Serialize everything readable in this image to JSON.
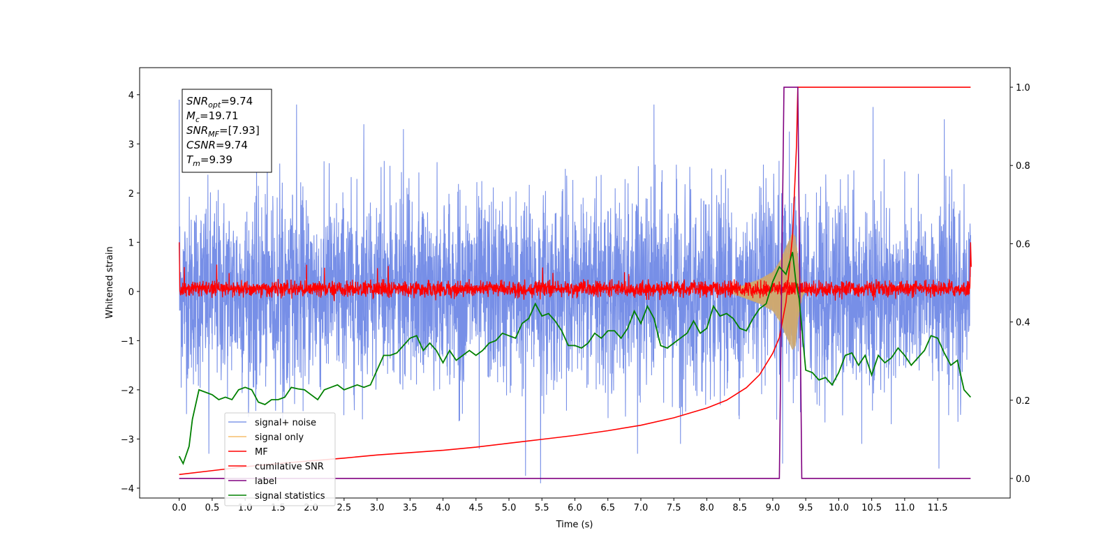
{
  "chart_data": {
    "type": "line",
    "xlabel": "Time (s)",
    "ylabel": "Whitened strain",
    "xlim": [
      -0.6,
      12.6
    ],
    "ylim_left": [
      -4.2,
      4.55
    ],
    "ylim_right": [
      -0.05,
      1.05
    ],
    "x_ticks": [
      0.0,
      0.5,
      1.0,
      1.5,
      2.0,
      2.5,
      3.0,
      3.5,
      4.0,
      4.5,
      5.0,
      5.5,
      6.0,
      6.5,
      7.0,
      7.5,
      8.0,
      8.5,
      9.0,
      9.5,
      10.0,
      10.5,
      11.0,
      11.5
    ],
    "x_tick_labels": [
      "0.0",
      "0.5",
      "1.0",
      "1.5",
      "2.0",
      "2.5",
      "3.0",
      "3.5",
      "4.0",
      "4.5",
      "5.0",
      "5.5",
      "6.0",
      "6.5",
      "7.0",
      "7.5",
      "8.0",
      "8.5",
      "9.0",
      "9.5",
      "10.0",
      "10.5",
      "11.0",
      "11.5"
    ],
    "y_ticks_left": [
      -4,
      -3,
      -2,
      -1,
      0,
      1,
      2,
      3,
      4
    ],
    "y_tick_labels_left": [
      "−4",
      "−3",
      "−2",
      "−1",
      "0",
      "1",
      "2",
      "3",
      "4"
    ],
    "y_ticks_right": [
      0.0,
      0.2,
      0.4,
      0.6,
      0.8,
      1.0
    ],
    "y_tick_labels_right": [
      "0.0",
      "0.2",
      "0.4",
      "0.6",
      "0.8",
      "1.0"
    ],
    "legend_position": "lower-left",
    "grid": false,
    "series": [
      {
        "name": "signal+ noise",
        "axis": "left",
        "color": "#6b86e5",
        "description": "whitened strain noise band, roughly -2.3 to 2.3 with spikes to about ±3.8",
        "t_start": 0.0,
        "t_end": 12.0,
        "band_typical": [
          -2.3,
          2.3
        ],
        "spikes": [
          {
            "x": 0.0,
            "y": 4.2
          },
          {
            "x": 0.0,
            "y": 3.9
          },
          {
            "x": 1.78,
            "y": 3.8
          },
          {
            "x": 7.2,
            "y": 3.8
          },
          {
            "x": 5.48,
            "y": -3.9
          },
          {
            "x": 5.25,
            "y": -3.75
          },
          {
            "x": 9.25,
            "y": 3.25
          },
          {
            "x": 10.52,
            "y": 3.75
          },
          {
            "x": 11.6,
            "y": 3.5
          },
          {
            "x": 11.52,
            "y": -3.6
          },
          {
            "x": 7.6,
            "y": -3.1
          },
          {
            "x": 4.55,
            "y": -3.2
          },
          {
            "x": 0.45,
            "y": -3.3
          },
          {
            "x": 9.15,
            "y": -3.5
          },
          {
            "x": 10.35,
            "y": -3.1
          },
          {
            "x": 6.95,
            "y": -3.3
          },
          {
            "x": 2.8,
            "y": 3.4
          },
          {
            "x": 3.4,
            "y": 3.3
          }
        ]
      },
      {
        "name": "signal only",
        "axis": "left",
        "color": "#f2a93b",
        "description": "chirp signal rising to peak near t≈9.3 s",
        "x": [
          8.4,
          8.6,
          8.8,
          9.0,
          9.1,
          9.2,
          9.3,
          9.35,
          9.4,
          9.45,
          9.5
        ],
        "envelope": [
          0.05,
          0.15,
          0.25,
          0.4,
          0.6,
          0.9,
          1.2,
          1.1,
          0.4,
          0.1,
          0.0
        ]
      },
      {
        "name": "MF",
        "axis": "left",
        "color": "#ff0000",
        "description": "matched-filter output, noise around 0 within about ±0.25 with end spikes to 1.0",
        "x": [
          0.0,
          0.01,
          12.0,
          12.01
        ],
        "y": [
          1.0,
          0.0,
          1.0,
          0.5
        ],
        "band": [
          -0.2,
          0.25
        ]
      },
      {
        "name": "cumilative SNR",
        "axis": "right",
        "color": "#ff0000",
        "x": [
          0.0,
          0.5,
          1.0,
          1.5,
          2.0,
          2.5,
          3.0,
          3.5,
          4.0,
          4.5,
          5.0,
          5.5,
          6.0,
          6.5,
          7.0,
          7.5,
          8.0,
          8.3,
          8.6,
          8.8,
          9.0,
          9.1,
          9.2,
          9.3,
          9.36,
          9.38,
          9.4,
          10.0,
          11.0,
          12.0
        ],
        "y": [
          0.01,
          0.02,
          0.03,
          0.038,
          0.045,
          0.052,
          0.06,
          0.066,
          0.072,
          0.08,
          0.09,
          0.1,
          0.11,
          0.122,
          0.136,
          0.155,
          0.18,
          0.2,
          0.232,
          0.265,
          0.32,
          0.36,
          0.45,
          0.62,
          0.85,
          1.0,
          1.0,
          1.0,
          1.0,
          1.0
        ]
      },
      {
        "name": "label",
        "axis": "right",
        "color": "#800080",
        "x": [
          0.0,
          9.1,
          9.17,
          9.38,
          9.44,
          12.0
        ],
        "y": [
          0.0,
          0.0,
          1.0,
          1.0,
          0.0,
          0.0
        ]
      },
      {
        "name": "signal statistics",
        "axis": "left",
        "color": "#008000",
        "x": [
          0.0,
          0.06,
          0.15,
          0.2,
          0.3,
          0.4,
          0.5,
          0.6,
          0.7,
          0.8,
          0.9,
          1.0,
          1.1,
          1.2,
          1.3,
          1.4,
          1.5,
          1.6,
          1.7,
          1.8,
          1.9,
          2.0,
          2.1,
          2.2,
          2.3,
          2.4,
          2.5,
          2.6,
          2.7,
          2.8,
          2.9,
          3.0,
          3.1,
          3.2,
          3.3,
          3.4,
          3.5,
          3.6,
          3.7,
          3.8,
          3.9,
          4.0,
          4.1,
          4.2,
          4.3,
          4.4,
          4.5,
          4.6,
          4.7,
          4.8,
          4.9,
          5.0,
          5.1,
          5.2,
          5.3,
          5.4,
          5.5,
          5.6,
          5.7,
          5.8,
          5.9,
          6.0,
          6.1,
          6.2,
          6.3,
          6.4,
          6.5,
          6.6,
          6.7,
          6.8,
          6.9,
          7.0,
          7.1,
          7.2,
          7.3,
          7.4,
          7.5,
          7.6,
          7.7,
          7.8,
          7.9,
          8.0,
          8.1,
          8.2,
          8.3,
          8.4,
          8.5,
          8.6,
          8.7,
          8.8,
          8.9,
          9.0,
          9.1,
          9.2,
          9.3,
          9.35,
          9.4,
          9.5,
          9.6,
          9.7,
          9.8,
          9.9,
          10.0,
          10.1,
          10.2,
          10.3,
          10.4,
          10.5,
          10.6,
          10.7,
          10.8,
          10.9,
          11.0,
          11.1,
          11.2,
          11.3,
          11.4,
          11.5,
          11.6,
          11.7,
          11.8,
          11.9,
          12.0
        ],
        "y": [
          -3.35,
          -3.5,
          -3.15,
          -2.6,
          -2.0,
          -2.05,
          -2.1,
          -2.2,
          -2.15,
          -2.2,
          -2.0,
          -1.95,
          -2.0,
          -2.25,
          -2.3,
          -2.2,
          -2.2,
          -2.15,
          -1.95,
          -1.98,
          -2.0,
          -2.1,
          -2.2,
          -2.0,
          -1.95,
          -1.9,
          -2.0,
          -1.95,
          -1.9,
          -1.95,
          -1.9,
          -1.6,
          -1.3,
          -1.3,
          -1.25,
          -1.1,
          -0.95,
          -0.9,
          -1.2,
          -1.05,
          -1.2,
          -1.45,
          -1.2,
          -1.4,
          -1.3,
          -1.2,
          -1.3,
          -1.2,
          -1.05,
          -1.0,
          -0.85,
          -0.9,
          -0.95,
          -0.65,
          -0.55,
          -0.25,
          -0.5,
          -0.45,
          -0.6,
          -0.8,
          -1.1,
          -1.1,
          -1.15,
          -1.05,
          -0.85,
          -0.95,
          -0.8,
          -0.8,
          -0.95,
          -0.75,
          -0.4,
          -0.65,
          -0.3,
          -0.55,
          -1.1,
          -1.15,
          -1.05,
          -0.95,
          -0.85,
          -0.6,
          -0.85,
          -0.75,
          -0.3,
          -0.5,
          -0.45,
          -0.55,
          -0.75,
          -0.8,
          -0.55,
          -0.35,
          -0.25,
          0.2,
          0.5,
          0.35,
          0.8,
          0.2,
          -0.15,
          -1.6,
          -1.65,
          -1.8,
          -1.75,
          -1.9,
          -1.65,
          -1.3,
          -1.25,
          -1.5,
          -1.3,
          -1.7,
          -1.3,
          -1.45,
          -1.35,
          -1.15,
          -1.3,
          -1.5,
          -1.35,
          -1.2,
          -0.9,
          -0.95,
          -1.25,
          -1.5,
          -1.4,
          -2.0,
          -2.15
        ]
      }
    ],
    "stats_box": [
      {
        "var": "SNR",
        "sub": "opt",
        "value": "=9.74"
      },
      {
        "var": "M",
        "sub": "c",
        "value": "=19.71"
      },
      {
        "var": "SNR",
        "sub": "MF",
        "value": "=[7.93]"
      },
      {
        "var": "CSNR",
        "sub": "",
        "value": "=9.74"
      },
      {
        "var": "T",
        "sub": "m",
        "value": "=9.39"
      }
    ]
  }
}
